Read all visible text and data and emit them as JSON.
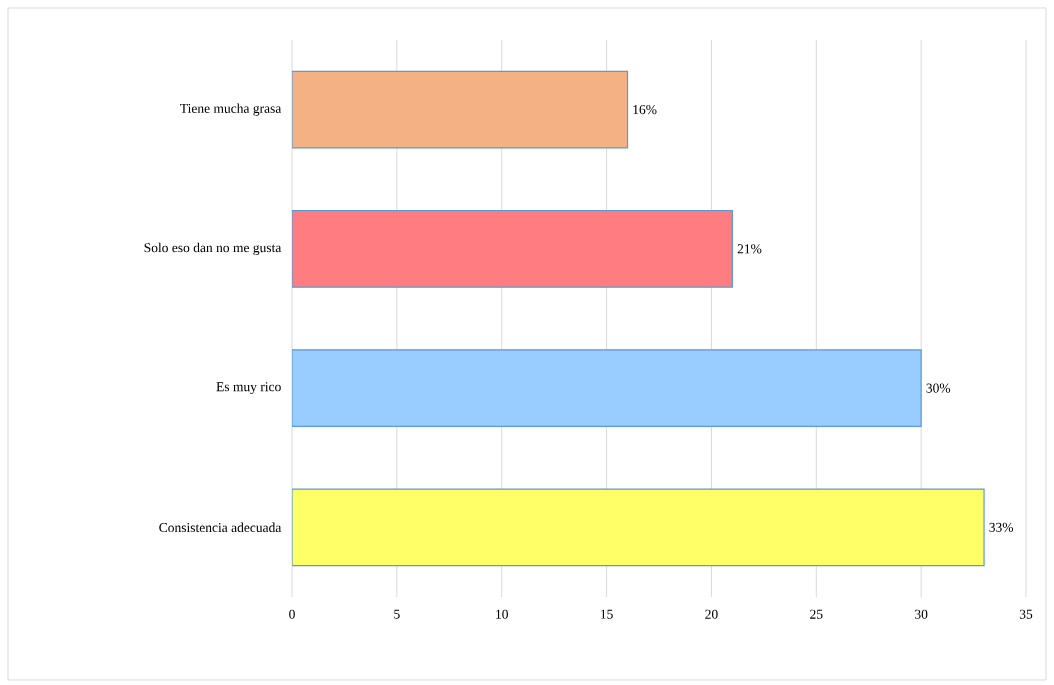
{
  "chart_data": {
    "type": "bar",
    "orientation": "horizontal",
    "categories": [
      "Tiene mucha grasa",
      "Solo eso dan no me gusta",
      "Es muy rico",
      "Consistencia adecuada"
    ],
    "values": [
      16,
      21,
      30,
      33
    ],
    "value_labels": [
      "16%",
      "21%",
      "30%",
      "33%"
    ],
    "colors": [
      "#f4b183",
      "#ff7c80",
      "#99ccff",
      "#ffff66"
    ],
    "xlim": [
      0,
      35
    ],
    "xticks": [
      0,
      5,
      10,
      15,
      20,
      25,
      30,
      35
    ],
    "grid": "x"
  }
}
